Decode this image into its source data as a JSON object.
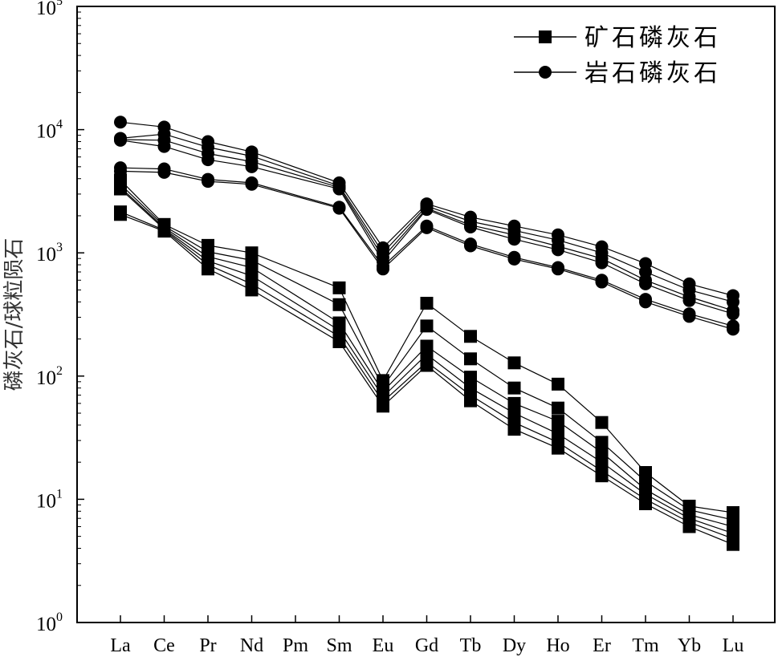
{
  "chart_data": {
    "type": "line",
    "title": "",
    "xlabel": "",
    "ylabel": "磷灰石/球粒陨石",
    "yscale": "log",
    "ylim": [
      1,
      100000
    ],
    "y_ticks": [
      {
        "base": "10",
        "exp": "0"
      },
      {
        "base": "10",
        "exp": "1"
      },
      {
        "base": "10",
        "exp": "2"
      },
      {
        "base": "10",
        "exp": "3"
      },
      {
        "base": "10",
        "exp": "4"
      },
      {
        "base": "10",
        "exp": "5"
      }
    ],
    "categories": [
      "La",
      "Ce",
      "Pr",
      "Nd",
      "Pm",
      "Sm",
      "Eu",
      "Gd",
      "Tb",
      "Dy",
      "Ho",
      "Er",
      "Tm",
      "Yb",
      "Lu"
    ],
    "grid": false,
    "legend_position": "top-right",
    "legend": [
      {
        "label": "矿石磷灰石",
        "marker": "square"
      },
      {
        "label": "岩石磷灰石",
        "marker": "circle"
      }
    ],
    "groups": [
      {
        "label": "矿石磷灰石",
        "marker": "square",
        "color": "#000000",
        "series": [
          {
            "values": [
              3900,
              1700,
              1150,
              1000,
              null,
              520,
              92,
              390,
              210,
              128,
              86,
              42,
              16.5,
              8.8,
              7.8
            ]
          },
          {
            "values": [
              3600,
              1650,
              1020,
              870,
              null,
              380,
              82,
              255,
              138,
              80,
              55,
              29,
              14,
              8.2,
              6.8
            ]
          },
          {
            "values": [
              3400,
              1600,
              930,
              760,
              null,
              270,
              75,
              175,
              98,
              60,
              43,
              24,
              12,
              7.5,
              6.0
            ]
          },
          {
            "values": [
              3300,
              1560,
              860,
              650,
              null,
              235,
              68,
              150,
              80,
              50,
              34,
              20,
              11,
              7.0,
              5.3
            ]
          },
          {
            "values": [
              2150,
              1530,
              800,
              560,
              null,
              210,
              62,
              130,
              70,
              42,
              29,
              17,
              10,
              6.5,
              4.8
            ]
          },
          {
            "values": [
              2050,
              1500,
              740,
              500,
              null,
              190,
              57,
              122,
              63,
              37,
              26,
              15.5,
              9.2,
              6.0,
              4.3
            ]
          }
        ]
      },
      {
        "label": "岩石磷灰石",
        "marker": "circle",
        "color": "#000000",
        "series": [
          {
            "values": [
              11500,
              10500,
              8000,
              6600,
              null,
              3700,
              1100,
              2500,
              1950,
              1650,
              1400,
              1120,
              820,
              560,
              450
            ]
          },
          {
            "values": [
              8500,
              9200,
              7200,
              6100,
              null,
              3500,
              1000,
              2400,
              1800,
              1520,
              1270,
              1000,
              700,
              500,
              400
            ]
          },
          {
            "values": [
              8300,
              8200,
              6400,
              5500,
              null,
              3400,
              920,
              2300,
              1680,
              1400,
              1130,
              900,
              600,
              440,
              340
            ]
          },
          {
            "values": [
              8200,
              7300,
              5700,
              5000,
              null,
              3300,
              850,
              2250,
              1620,
              1290,
              1060,
              830,
              560,
              410,
              320
            ]
          },
          {
            "values": [
              4900,
              4800,
              3950,
              3700,
              null,
              2350,
              780,
              1650,
              1180,
              920,
              760,
              600,
              420,
              320,
              255
            ]
          },
          {
            "values": [
              4600,
              4500,
              3800,
              3600,
              null,
              2300,
              740,
              1600,
              1140,
              890,
              740,
              580,
              400,
              305,
              240
            ]
          }
        ]
      }
    ]
  }
}
